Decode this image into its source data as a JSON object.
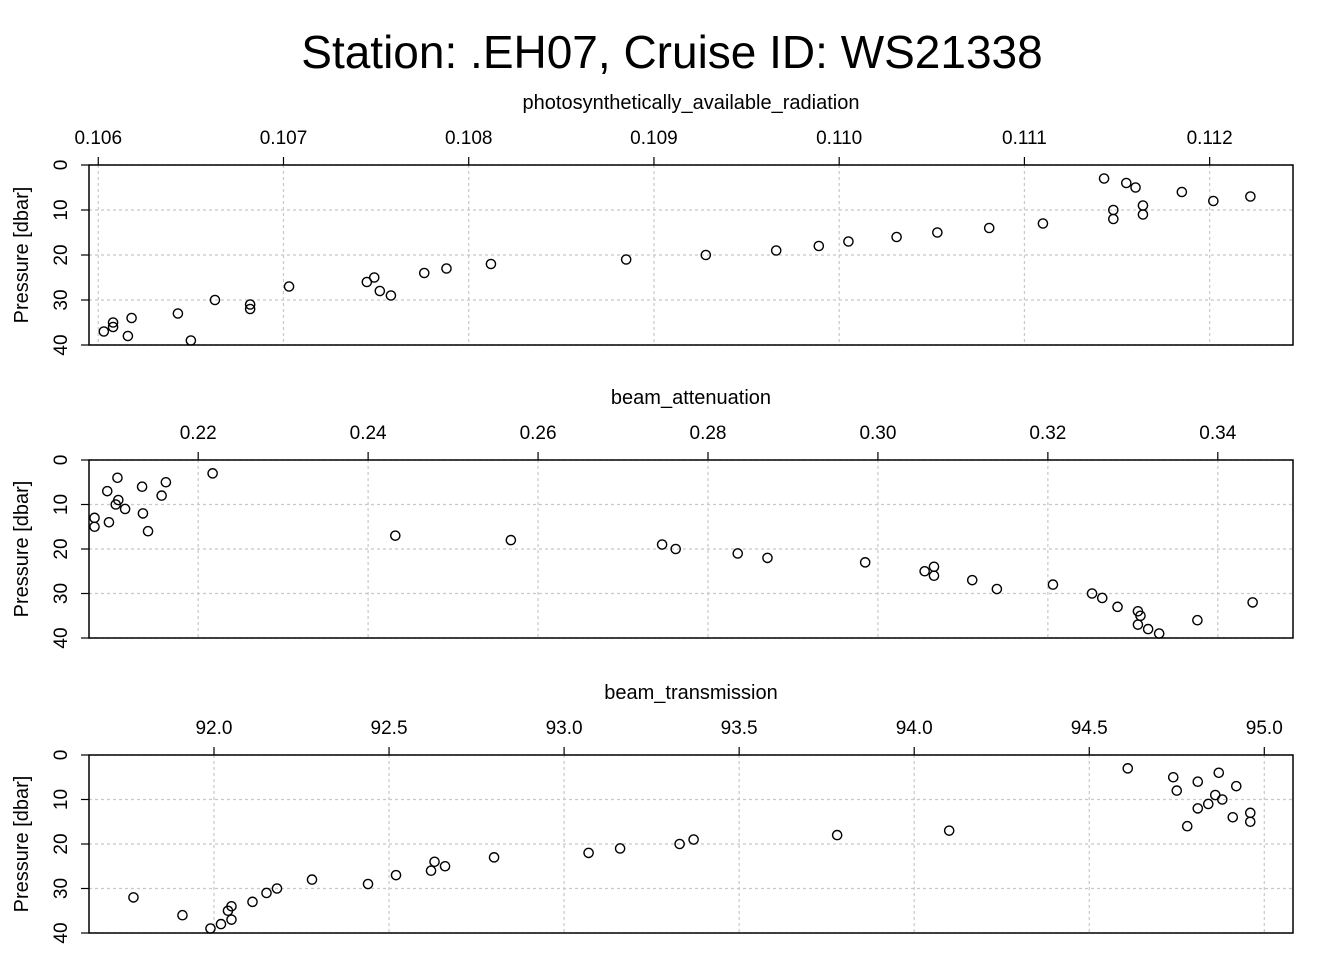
{
  "chart_data": {
    "title": "Station: .EH07, Cruise ID: WS21338",
    "panels": [
      {
        "type": "scatter",
        "xlabel": "photosynthetically_available_radiation",
        "ylabel": "Pressure [dbar]",
        "xlim": [
          0.10595,
          0.11245
        ],
        "ylim": [
          40,
          0
        ],
        "y_reversed": true,
        "grid": true,
        "xticks": [
          "0.106",
          "0.107",
          "0.108",
          "0.109",
          "0.110",
          "0.111",
          "0.112"
        ],
        "yticks": [
          "0",
          "10",
          "20",
          "30",
          "40"
        ],
        "points": [
          [
            0.11143,
            3
          ],
          [
            0.11155,
            4
          ],
          [
            0.1116,
            5
          ],
          [
            0.11185,
            6
          ],
          [
            0.11222,
            7
          ],
          [
            0.11202,
            8
          ],
          [
            0.11164,
            9
          ],
          [
            0.11148,
            10
          ],
          [
            0.11164,
            11
          ],
          [
            0.11148,
            12
          ],
          [
            0.1111,
            13
          ],
          [
            0.11081,
            14
          ],
          [
            0.11053,
            15
          ],
          [
            0.11031,
            16
          ],
          [
            0.11005,
            17
          ],
          [
            0.10989,
            18
          ],
          [
            0.10966,
            19
          ],
          [
            0.10928,
            20
          ],
          [
            0.10885,
            21
          ],
          [
            0.10812,
            22
          ],
          [
            0.10788,
            23
          ],
          [
            0.10776,
            24
          ],
          [
            0.10749,
            25
          ],
          [
            0.10745,
            26
          ],
          [
            0.10703,
            27
          ],
          [
            0.10752,
            28
          ],
          [
            0.10758,
            29
          ],
          [
            0.10663,
            30
          ],
          [
            0.10682,
            31
          ],
          [
            0.10682,
            32
          ],
          [
            0.10643,
            33
          ],
          [
            0.10618,
            34
          ],
          [
            0.10608,
            35
          ],
          [
            0.10608,
            36
          ],
          [
            0.10603,
            37
          ],
          [
            0.10616,
            38
          ],
          [
            0.1065,
            39
          ]
        ]
      },
      {
        "type": "scatter",
        "xlabel": "beam_attenuation",
        "ylabel": "Pressure [dbar]",
        "xlim": [
          0.20715,
          0.34885
        ],
        "ylim": [
          40,
          0
        ],
        "y_reversed": true,
        "grid": true,
        "xticks": [
          "0.22",
          "0.24",
          "0.26",
          "0.28",
          "0.30",
          "0.32",
          "0.34"
        ],
        "yticks": [
          "0",
          "10",
          "20",
          "30",
          "40"
        ],
        "points": [
          [
            0.2217,
            3
          ],
          [
            0.2105,
            4
          ],
          [
            0.2162,
            5
          ],
          [
            0.2134,
            6
          ],
          [
            0.2093,
            7
          ],
          [
            0.2157,
            8
          ],
          [
            0.2106,
            9
          ],
          [
            0.2103,
            10
          ],
          [
            0.2114,
            11
          ],
          [
            0.2135,
            12
          ],
          [
            0.2078,
            13
          ],
          [
            0.2095,
            14
          ],
          [
            0.2078,
            15
          ],
          [
            0.2141,
            16
          ],
          [
            0.2432,
            17
          ],
          [
            0.2568,
            18
          ],
          [
            0.2746,
            19
          ],
          [
            0.2762,
            20
          ],
          [
            0.2835,
            21
          ],
          [
            0.287,
            22
          ],
          [
            0.2985,
            23
          ],
          [
            0.3066,
            24
          ],
          [
            0.3055,
            25
          ],
          [
            0.3066,
            26
          ],
          [
            0.3111,
            27
          ],
          [
            0.3206,
            28
          ],
          [
            0.314,
            29
          ],
          [
            0.3252,
            30
          ],
          [
            0.3264,
            31
          ],
          [
            0.3441,
            32
          ],
          [
            0.3282,
            33
          ],
          [
            0.3306,
            34
          ],
          [
            0.3309,
            35
          ],
          [
            0.3376,
            36
          ],
          [
            0.3306,
            37
          ],
          [
            0.3318,
            38
          ],
          [
            0.3331,
            39
          ]
        ]
      },
      {
        "type": "scatter",
        "xlabel": "beam_transmission",
        "ylabel": "Pressure [dbar]",
        "xlim": [
          91.643,
          95.082
        ],
        "ylim": [
          40,
          0
        ],
        "y_reversed": true,
        "grid": true,
        "xticks": [
          "92.0",
          "92.5",
          "93.0",
          "93.5",
          "94.0",
          "94.5",
          "95.0"
        ],
        "yticks": [
          "0",
          "10",
          "20",
          "30",
          "40"
        ],
        "points": [
          [
            94.61,
            3
          ],
          [
            94.87,
            4
          ],
          [
            94.74,
            5
          ],
          [
            94.81,
            6
          ],
          [
            94.92,
            7
          ],
          [
            94.75,
            8
          ],
          [
            94.86,
            9
          ],
          [
            94.88,
            10
          ],
          [
            94.84,
            11
          ],
          [
            94.81,
            12
          ],
          [
            94.96,
            13
          ],
          [
            94.91,
            14
          ],
          [
            94.96,
            15
          ],
          [
            94.78,
            16
          ],
          [
            94.1,
            17
          ],
          [
            93.78,
            18
          ],
          [
            93.37,
            19
          ],
          [
            93.33,
            20
          ],
          [
            93.16,
            21
          ],
          [
            93.07,
            22
          ],
          [
            92.8,
            23
          ],
          [
            92.63,
            24
          ],
          [
            92.66,
            25
          ],
          [
            92.62,
            26
          ],
          [
            92.52,
            27
          ],
          [
            92.28,
            28
          ],
          [
            92.44,
            29
          ],
          [
            92.18,
            30
          ],
          [
            92.15,
            31
          ],
          [
            91.77,
            32
          ],
          [
            92.11,
            33
          ],
          [
            92.05,
            34
          ],
          [
            92.04,
            35
          ],
          [
            91.91,
            36
          ],
          [
            92.05,
            37
          ],
          [
            92.02,
            38
          ],
          [
            91.99,
            39
          ]
        ]
      }
    ]
  }
}
